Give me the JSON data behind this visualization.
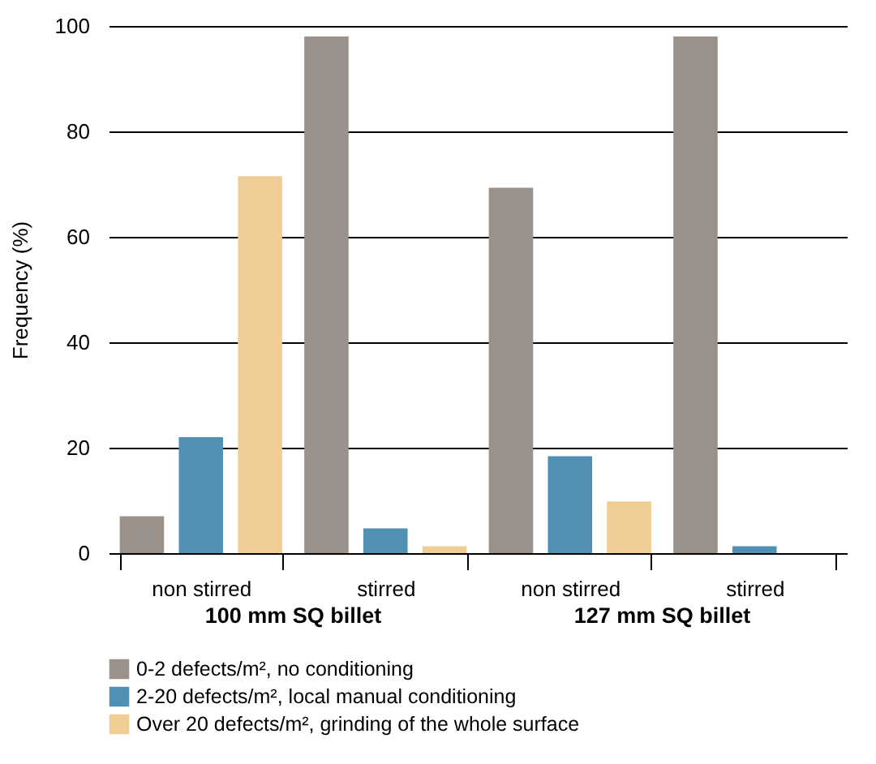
{
  "chart_data": {
    "type": "bar",
    "ylabel": "Frequency (%)",
    "categories": [
      "non stirred",
      "stirred",
      "non stirred",
      "stirred"
    ],
    "annotations": [
      "100 mm SQ billet",
      "127 mm SQ billet"
    ],
    "series": [
      {
        "name": "0-2 defects/m², no conditioning",
        "color": "#9a918a",
        "values": [
          7,
          98,
          69.3,
          98
        ]
      },
      {
        "name": "2-20 defects/m², local manual conditioning",
        "color": "#5091b3",
        "values": [
          22,
          4.7,
          18.4,
          1.3
        ]
      },
      {
        "name": "Over 20 defects/m², grinding of the whole surface",
        "color": "#f0cd95",
        "values": [
          71.5,
          1.3,
          9.8,
          0
        ]
      }
    ],
    "ylim": [
      0,
      100
    ],
    "yticks": [
      0,
      20,
      40,
      60,
      80,
      100
    ],
    "grid": "y",
    "legend": "bottom"
  }
}
